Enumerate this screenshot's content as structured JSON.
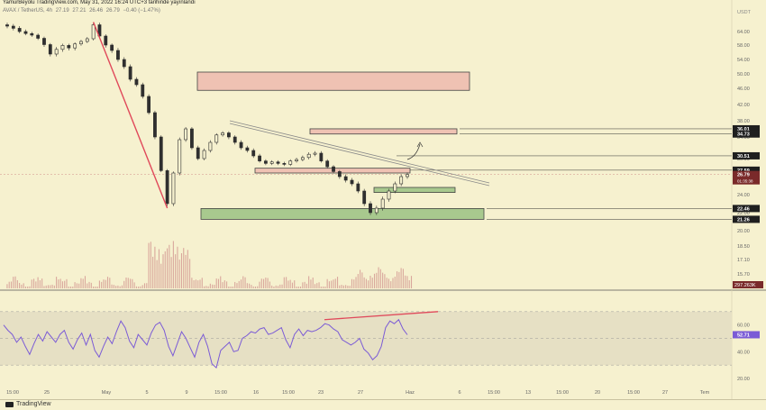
{
  "header": {
    "title": "YamurBeyolu TradingView.com, May 31, 2022 16:24 UTC+3 tarihinde yayınlandı",
    "symbol": "AVAX / TetherUS, 4h",
    "ohlc": [
      "27.19",
      "27.21",
      "26.46",
      "26.79",
      "−0.40 (−1.47%)"
    ]
  },
  "footer": {
    "brand": "TradingView"
  },
  "colors": {
    "background": "#f6f1cf",
    "candle": "#2f2f2f",
    "volume": "#d9a79c",
    "resistance_zone": "#efc2b3",
    "support_zone": "#a8c98e",
    "trendline_red": "#e0485a",
    "rsi_line": "#7b5bd6",
    "rsi_band": "#e6e0c4",
    "price_badge": "#7a2a2a"
  },
  "chart_data": [
    {
      "type": "candlestick",
      "currency": "USDT",
      "y_ticks": [
        "64.00",
        "58.00",
        "54.00",
        "50.00",
        "46.00",
        "42.00",
        "38.00",
        "34.00",
        "30.00",
        "27.00",
        "24.00",
        "22.00",
        "20.00",
        "18.50",
        "17.10",
        "15.70",
        "14.50"
      ],
      "x_ticks": [
        "15:00",
        "25",
        "May",
        "5",
        "9",
        "15:00",
        "16",
        "15:00",
        "23",
        "27",
        "Haz",
        "6",
        "15:00",
        "13",
        "15:00",
        "20",
        "15:00",
        "27",
        "Tem"
      ],
      "price_labels": [
        {
          "value": "36.01",
          "style": "black"
        },
        {
          "value": "34.73",
          "style": "black"
        },
        {
          "value": "30.51",
          "style": "black"
        },
        {
          "value": "27.59",
          "style": "black"
        },
        {
          "value": "26.79",
          "style": "dark-red",
          "sub": "01:35:38"
        },
        {
          "value": "22.46",
          "style": "black"
        },
        {
          "value": "21.26",
          "style": "black"
        }
      ],
      "close_series": [
        66.0,
        65.2,
        64.0,
        63.1,
        62.4,
        61.0,
        58.2,
        55.5,
        56.8,
        57.9,
        57.2,
        58.5,
        59.6,
        60.8,
        66.5,
        62.0,
        58.0,
        56.5,
        54.0,
        52.0,
        48.5,
        47.0,
        44.0,
        40.0,
        34.0,
        27.5,
        23.0,
        27.0,
        33.5,
        36.0,
        32.0,
        30.0,
        31.5,
        33.0,
        34.5,
        35.0,
        34.0,
        33.0,
        32.0,
        31.5,
        30.5,
        29.5,
        29.0,
        29.3,
        29.0,
        28.8,
        29.5,
        29.8,
        30.2,
        30.8,
        31.0,
        29.5,
        28.3,
        27.3,
        26.5,
        26.0,
        25.5,
        24.5,
        23.0,
        22.0,
        22.5,
        23.5,
        24.5,
        25.5,
        26.5,
        26.79
      ],
      "annotations": [
        {
          "kind": "zone",
          "role": "resistance",
          "from": 45.5,
          "to": 50.5
        },
        {
          "kind": "zone",
          "role": "resistance",
          "from": 34.73,
          "to": 36.01
        },
        {
          "kind": "zone",
          "role": "resistance",
          "from": 27.0,
          "to": 28.0
        },
        {
          "kind": "zone",
          "role": "support",
          "from": 24.3,
          "to": 25.0
        },
        {
          "kind": "zone",
          "role": "support",
          "from": 21.26,
          "to": 22.46
        },
        {
          "kind": "trendline",
          "style": "double-grey",
          "description": "descending"
        },
        {
          "kind": "trendline",
          "style": "red",
          "description": "drop from 66 to 23"
        }
      ],
      "volume_label": "297.263K"
    },
    {
      "type": "line",
      "series": [
        {
          "values": [
            60,
            56,
            53,
            47,
            51,
            44,
            38,
            46,
            53,
            48,
            55,
            51,
            47,
            53,
            56,
            47,
            42,
            49,
            54,
            45,
            53,
            41,
            36,
            44,
            51,
            46,
            55,
            63,
            58,
            48,
            43,
            53,
            49,
            45,
            54,
            60,
            62,
            56,
            44,
            37,
            46,
            55,
            50,
            43,
            36,
            47,
            53,
            44,
            31,
            28,
            41,
            44,
            47,
            40,
            41,
            50,
            52,
            55,
            54,
            57,
            58,
            53,
            54,
            56,
            58,
            49,
            43,
            53,
            57,
            52,
            56,
            55,
            56,
            58,
            61,
            60,
            57,
            55,
            49,
            47,
            45,
            47,
            50,
            42,
            39,
            34,
            37,
            44,
            58,
            63,
            61,
            64,
            57,
            52.71
          ]
        }
      ],
      "y_ticks": [
        "60.00",
        "40.00",
        "20.00"
      ],
      "bands": [
        30,
        70
      ],
      "current_value": "52.71",
      "divergence_line": "rising"
    }
  ]
}
